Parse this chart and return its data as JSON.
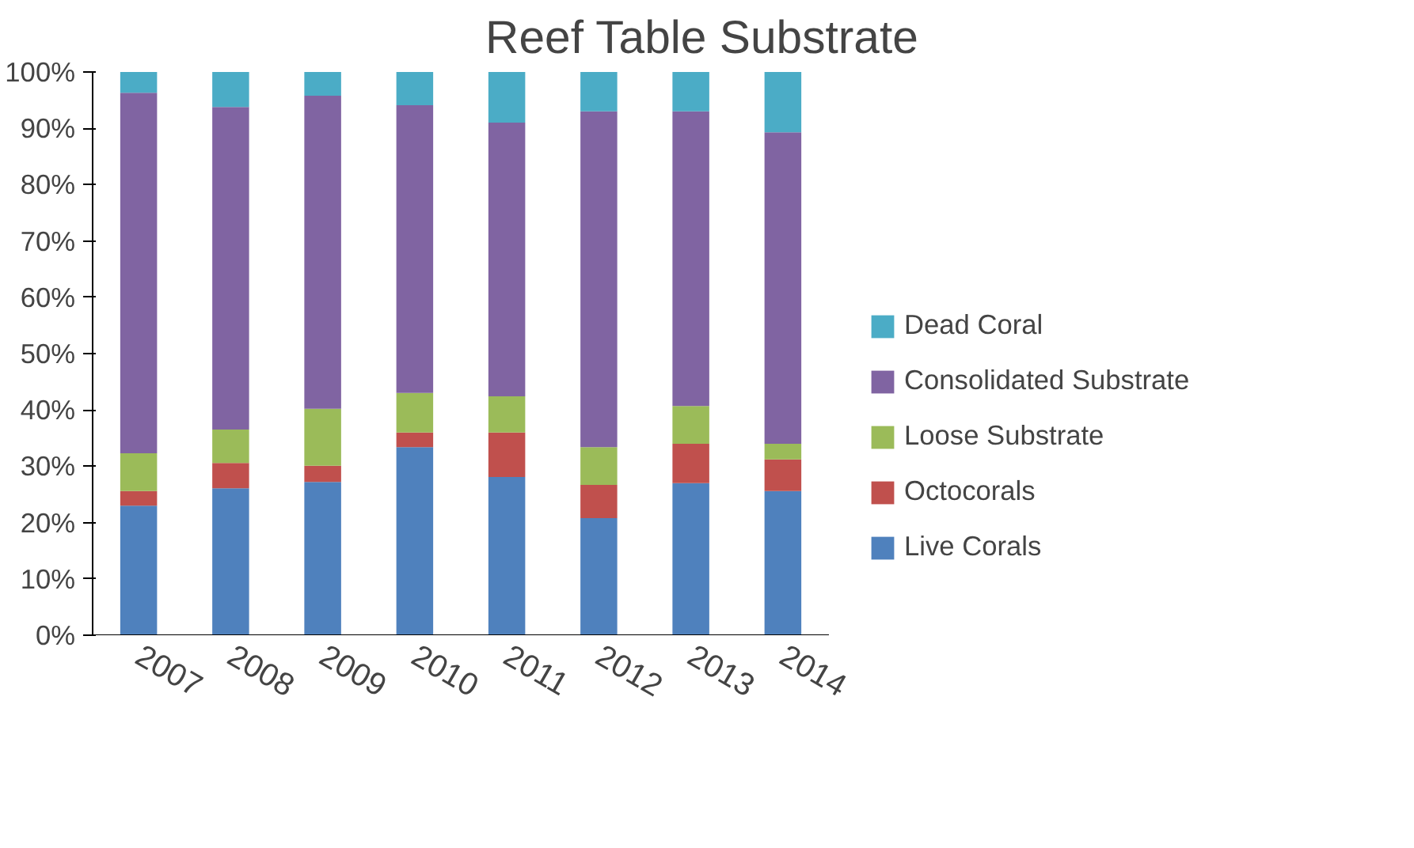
{
  "chart_data": {
    "type": "bar",
    "title": "Reef Table Substrate",
    "stacked": true,
    "categories": [
      "2007",
      "2008",
      "2009",
      "2010",
      "2011",
      "2012",
      "2013",
      "2014"
    ],
    "ylim": [
      0,
      100
    ],
    "yticks": [
      {
        "value": 0,
        "label": "0%"
      },
      {
        "value": 10,
        "label": "10%"
      },
      {
        "value": 20,
        "label": "20%"
      },
      {
        "value": 30,
        "label": "30%"
      },
      {
        "value": 40,
        "label": "40%"
      },
      {
        "value": 50,
        "label": "50%"
      },
      {
        "value": 60,
        "label": "60%"
      },
      {
        "value": 70,
        "label": "70%"
      },
      {
        "value": 80,
        "label": "80%"
      },
      {
        "value": 90,
        "label": "90%"
      },
      {
        "value": 100,
        "label": "100%"
      }
    ],
    "grid": false,
    "legend": "right",
    "series": [
      {
        "name": "Live Corals",
        "color": "#4f81bd",
        "values": [
          23,
          26.1,
          27.2,
          33.4,
          28.1,
          20.8,
          27,
          25.6
        ]
      },
      {
        "name": "Octocorals",
        "color": "#c0504d",
        "values": [
          2.6,
          4.5,
          2.9,
          2.6,
          7.9,
          5.9,
          7,
          5.6
        ]
      },
      {
        "name": "Loose Substrate",
        "color": "#9bbb59",
        "values": [
          6.7,
          5.9,
          10.1,
          7,
          6.4,
          6.7,
          6.7,
          2.8
        ]
      },
      {
        "name": "Consolidated Substrate",
        "color": "#8064a2",
        "values": [
          64,
          57.3,
          55.6,
          51.1,
          48.6,
          59.6,
          52.3,
          55.3
        ]
      },
      {
        "name": "Dead Coral",
        "color": "#4bacc6",
        "values": [
          3.7,
          6.2,
          4.2,
          5.9,
          9,
          7,
          7,
          10.7
        ]
      }
    ]
  }
}
